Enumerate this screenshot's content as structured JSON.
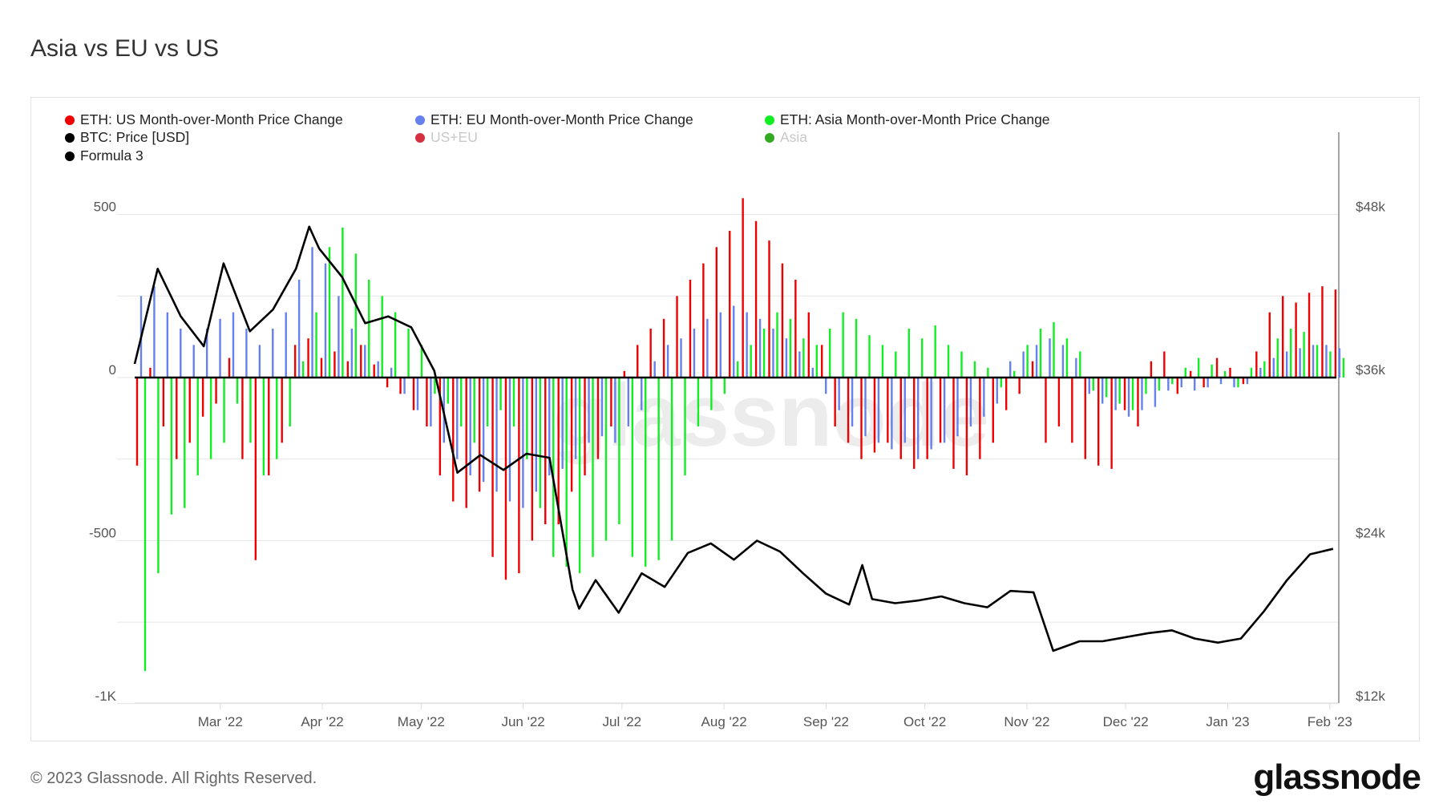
{
  "title": "Asia vs EU vs US",
  "footer": "© 2023 Glassnode. All Rights Reserved.",
  "logo": "glassnode",
  "watermark": "glassnode",
  "legend": [
    {
      "label": "ETH: US Month-over-Month Price Change",
      "color": "#ee0000",
      "active": true
    },
    {
      "label": "ETH: EU Month-over-Month Price Change",
      "color": "#6680ee",
      "active": true
    },
    {
      "label": "ETH: Asia Month-over-Month Price Change",
      "color": "#11ee22",
      "active": true
    },
    {
      "label": "BTC: Price [USD]",
      "color": "#000000",
      "active": true
    },
    {
      "label": "US+EU",
      "color": "#d63040",
      "active": false
    },
    {
      "label": "Asia",
      "color": "#33aa22",
      "active": false
    },
    {
      "label": "Formula 3",
      "color": "#000000",
      "active": true
    }
  ],
  "chart_data": {
    "type": "bar+line",
    "title": "Asia vs EU vs US",
    "left_axis": {
      "ticks": [
        "500",
        "0",
        "-500",
        "-1K"
      ],
      "tick_values": [
        500,
        0,
        -500,
        -1000
      ],
      "ylim": [
        -1000,
        625
      ]
    },
    "right_axis": {
      "ticks": [
        "$48k",
        "$36k",
        "$24k",
        "$12k"
      ],
      "tick_values": [
        48000,
        36000,
        24000,
        12000
      ],
      "ylim": [
        12000,
        51000
      ]
    },
    "x_axis": {
      "ticks": [
        "Mar '22",
        "Apr '22",
        "May '22",
        "Jun '22",
        "Jul '22",
        "Aug '22",
        "Sep '22",
        "Oct '22",
        "Nov '22",
        "Dec '22",
        "Jan '23",
        "Feb '23"
      ],
      "tick_dates": [
        "2022-03-01",
        "2022-04-01",
        "2022-05-01",
        "2022-06-01",
        "2022-07-01",
        "2022-08-01",
        "2022-09-01",
        "2022-10-01",
        "2022-11-01",
        "2022-12-01",
        "2023-01-01",
        "2023-02-01"
      ],
      "range": [
        "2022-02-03",
        "2023-02-03"
      ]
    },
    "grid": true,
    "legend_position": "top-left",
    "bar_dates": [
      "2022-02-03",
      "2022-02-07",
      "2022-02-11",
      "2022-02-15",
      "2022-02-19",
      "2022-02-23",
      "2022-02-27",
      "2022-03-03",
      "2022-03-07",
      "2022-03-11",
      "2022-03-15",
      "2022-03-19",
      "2022-03-23",
      "2022-03-27",
      "2022-03-31",
      "2022-04-04",
      "2022-04-08",
      "2022-04-12",
      "2022-04-16",
      "2022-04-20",
      "2022-04-24",
      "2022-04-28",
      "2022-05-02",
      "2022-05-06",
      "2022-05-10",
      "2022-05-14",
      "2022-05-18",
      "2022-05-22",
      "2022-05-26",
      "2022-05-30",
      "2022-06-03",
      "2022-06-07",
      "2022-06-11",
      "2022-06-15",
      "2022-06-19",
      "2022-06-23",
      "2022-06-27",
      "2022-07-01",
      "2022-07-05",
      "2022-07-09",
      "2022-07-13",
      "2022-07-17",
      "2022-07-21",
      "2022-07-25",
      "2022-07-29",
      "2022-08-02",
      "2022-08-06",
      "2022-08-10",
      "2022-08-14",
      "2022-08-18",
      "2022-08-22",
      "2022-08-26",
      "2022-08-30",
      "2022-09-03",
      "2022-09-07",
      "2022-09-11",
      "2022-09-15",
      "2022-09-19",
      "2022-09-23",
      "2022-09-27",
      "2022-10-01",
      "2022-10-05",
      "2022-10-09",
      "2022-10-13",
      "2022-10-17",
      "2022-10-21",
      "2022-10-25",
      "2022-10-29",
      "2022-11-02",
      "2022-11-06",
      "2022-11-10",
      "2022-11-14",
      "2022-11-18",
      "2022-11-22",
      "2022-11-26",
      "2022-11-30",
      "2022-12-04",
      "2022-12-08",
      "2022-12-12",
      "2022-12-16",
      "2022-12-20",
      "2022-12-24",
      "2022-12-28",
      "2023-01-01",
      "2023-01-05",
      "2023-01-09",
      "2023-01-13",
      "2023-01-17",
      "2023-01-21",
      "2023-01-25",
      "2023-01-29",
      "2023-02-02"
    ],
    "series": [
      {
        "name": "ETH: US Month-over-Month Price Change",
        "kind": "bar",
        "axis": "left",
        "color": "#ee0000",
        "values": [
          -270,
          30,
          -150,
          -250,
          -200,
          -120,
          -80,
          60,
          -250,
          -560,
          -300,
          -200,
          100,
          120,
          60,
          80,
          50,
          100,
          40,
          -30,
          -50,
          -100,
          -150,
          -300,
          -380,
          -400,
          -350,
          -550,
          -620,
          -600,
          -500,
          -450,
          -450,
          -350,
          -300,
          -250,
          -150,
          20,
          100,
          150,
          180,
          250,
          300,
          350,
          400,
          450,
          550,
          480,
          420,
          350,
          300,
          200,
          100,
          -150,
          -200,
          -250,
          -230,
          -200,
          -250,
          -280,
          -250,
          -200,
          -280,
          -300,
          -250,
          -200,
          -100,
          -50,
          50,
          -200,
          -150,
          -200,
          -250,
          -270,
          -280,
          -100,
          -150,
          50,
          80,
          -50,
          20,
          -30,
          60,
          30,
          -20,
          80,
          200,
          250,
          230,
          260,
          280,
          270
        ]
      },
      {
        "name": "ETH: EU Month-over-Month Price Change",
        "kind": "bar",
        "axis": "left",
        "color": "#6680ee",
        "values": [
          250,
          280,
          200,
          150,
          100,
          150,
          180,
          200,
          150,
          100,
          150,
          200,
          300,
          400,
          350,
          250,
          150,
          100,
          50,
          30,
          -50,
          -100,
          -150,
          -200,
          -250,
          -300,
          -320,
          -350,
          -380,
          -400,
          -350,
          -300,
          -280,
          -250,
          -200,
          -180,
          -200,
          -150,
          -100,
          50,
          100,
          120,
          150,
          180,
          200,
          220,
          200,
          180,
          150,
          120,
          80,
          30,
          -50,
          -100,
          -150,
          -180,
          -200,
          -220,
          -200,
          -250,
          -220,
          -200,
          -180,
          -150,
          -120,
          -80,
          50,
          80,
          100,
          120,
          100,
          60,
          -50,
          -80,
          -100,
          -120,
          -100,
          -90,
          -40,
          -30,
          -40,
          -30,
          -20,
          -30,
          -20,
          30,
          60,
          80,
          90,
          100,
          100,
          90
        ]
      },
      {
        "name": "ETH: Asia Month-over-Month Price Change",
        "kind": "bar",
        "axis": "left",
        "color": "#11ee22",
        "values": [
          -900,
          -600,
          -420,
          -400,
          -300,
          -250,
          -200,
          -80,
          -200,
          -300,
          -250,
          -150,
          50,
          200,
          400,
          460,
          380,
          300,
          250,
          200,
          150,
          100,
          -50,
          -80,
          -150,
          -200,
          -150,
          -100,
          -150,
          -250,
          -400,
          -550,
          -580,
          -600,
          -550,
          -500,
          -450,
          -550,
          -580,
          -560,
          -500,
          -300,
          -150,
          -100,
          -50,
          50,
          100,
          150,
          200,
          180,
          120,
          100,
          150,
          200,
          180,
          130,
          100,
          80,
          150,
          120,
          160,
          100,
          80,
          50,
          30,
          -30,
          20,
          100,
          150,
          170,
          120,
          80,
          -40,
          -60,
          -80,
          -100,
          -50,
          -40,
          -20,
          30,
          60,
          40,
          20,
          -30,
          30,
          50,
          120,
          150,
          140,
          100,
          80,
          60
        ]
      },
      {
        "name": "Formula 3",
        "kind": "line",
        "axis": "right",
        "color": "#000000",
        "points": [
          [
            "2022-02-03",
            37000
          ],
          [
            "2022-02-10",
            44000
          ],
          [
            "2022-02-17",
            40500
          ],
          [
            "2022-02-24",
            38300
          ],
          [
            "2022-03-02",
            44400
          ],
          [
            "2022-03-10",
            39400
          ],
          [
            "2022-03-17",
            41000
          ],
          [
            "2022-03-24",
            44000
          ],
          [
            "2022-03-28",
            47100
          ],
          [
            "2022-03-31",
            45500
          ],
          [
            "2022-04-07",
            43400
          ],
          [
            "2022-04-14",
            40000
          ],
          [
            "2022-04-21",
            40500
          ],
          [
            "2022-04-28",
            39700
          ],
          [
            "2022-05-05",
            36500
          ],
          [
            "2022-05-12",
            29000
          ],
          [
            "2022-05-19",
            30300
          ],
          [
            "2022-05-26",
            29200
          ],
          [
            "2022-06-02",
            30400
          ],
          [
            "2022-06-09",
            30100
          ],
          [
            "2022-06-16",
            20400
          ],
          [
            "2022-06-18",
            19000
          ],
          [
            "2022-06-23",
            21100
          ],
          [
            "2022-06-30",
            18700
          ],
          [
            "2022-07-07",
            21600
          ],
          [
            "2022-07-14",
            20600
          ],
          [
            "2022-07-21",
            23100
          ],
          [
            "2022-07-28",
            23800
          ],
          [
            "2022-08-04",
            22600
          ],
          [
            "2022-08-11",
            24000
          ],
          [
            "2022-08-18",
            23200
          ],
          [
            "2022-08-25",
            21600
          ],
          [
            "2022-09-01",
            20100
          ],
          [
            "2022-09-08",
            19300
          ],
          [
            "2022-09-12",
            22200
          ],
          [
            "2022-09-15",
            19700
          ],
          [
            "2022-09-22",
            19400
          ],
          [
            "2022-09-29",
            19600
          ],
          [
            "2022-10-06",
            19900
          ],
          [
            "2022-10-13",
            19400
          ],
          [
            "2022-10-20",
            19100
          ],
          [
            "2022-10-27",
            20300
          ],
          [
            "2022-11-03",
            20200
          ],
          [
            "2022-11-09",
            15900
          ],
          [
            "2022-11-17",
            16600
          ],
          [
            "2022-11-24",
            16600
          ],
          [
            "2022-12-01",
            16900
          ],
          [
            "2022-12-08",
            17200
          ],
          [
            "2022-12-15",
            17400
          ],
          [
            "2022-12-22",
            16800
          ],
          [
            "2022-12-29",
            16500
          ],
          [
            "2023-01-05",
            16800
          ],
          [
            "2023-01-12",
            18800
          ],
          [
            "2023-01-19",
            21100
          ],
          [
            "2023-01-26",
            23000
          ],
          [
            "2023-02-02",
            23400
          ]
        ]
      }
    ]
  }
}
